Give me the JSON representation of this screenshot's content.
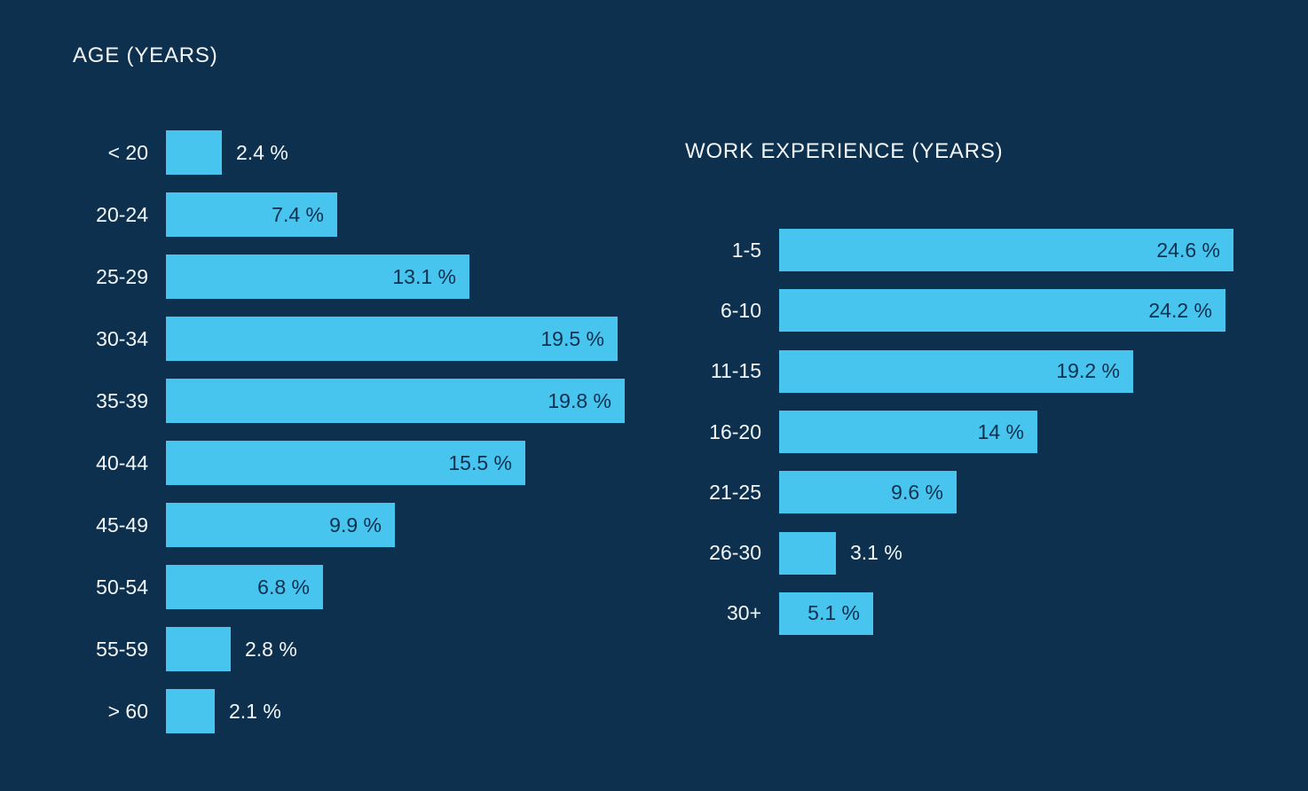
{
  "colors": {
    "background": "#0D304F",
    "bar": "#47C5EF",
    "label_light": "#F3F7F9",
    "label_dark": "#0D304F"
  },
  "chart_data": [
    {
      "type": "bar",
      "orientation": "horizontal",
      "title": "AGE (YEARS)",
      "unit": "%",
      "categories": [
        "< 20",
        "20-24",
        "25-29",
        "30-34",
        "35-39",
        "40-44",
        "45-49",
        "50-54",
        "55-59",
        "> 60"
      ],
      "values": [
        2.4,
        7.4,
        13.1,
        19.5,
        19.8,
        15.5,
        9.9,
        6.8,
        2.8,
        2.1
      ],
      "value_labels": [
        "2.4 %",
        "7.4 %",
        "13.1 %",
        "19.5 %",
        "19.8 %",
        "15.5 %",
        "9.9 %",
        "6.8 %",
        "2.8 %",
        "2.1 %"
      ],
      "xlim": [
        0,
        21.2
      ],
      "grid": false,
      "axis_ticks": "none",
      "value_label_position": "inside-right for large bars, outside-right for small bars"
    },
    {
      "type": "bar",
      "orientation": "horizontal",
      "title": "WORK EXPERIENCE (YEARS)",
      "unit": "%",
      "categories": [
        "1-5",
        "6-10",
        "11-15",
        "16-20",
        "21-25",
        "26-30",
        "30+"
      ],
      "values": [
        24.6,
        24.2,
        19.2,
        14,
        9.6,
        3.1,
        5.1
      ],
      "value_labels": [
        "24.6 %",
        "24.2 %",
        "19.2 %",
        "14 %",
        "9.6 %",
        "3.1 %",
        "5.1 %"
      ],
      "xlim": [
        0,
        26.6
      ],
      "grid": false,
      "axis_ticks": "none",
      "value_label_position": "inside-right for large bars, outside-right for small bars"
    }
  ]
}
